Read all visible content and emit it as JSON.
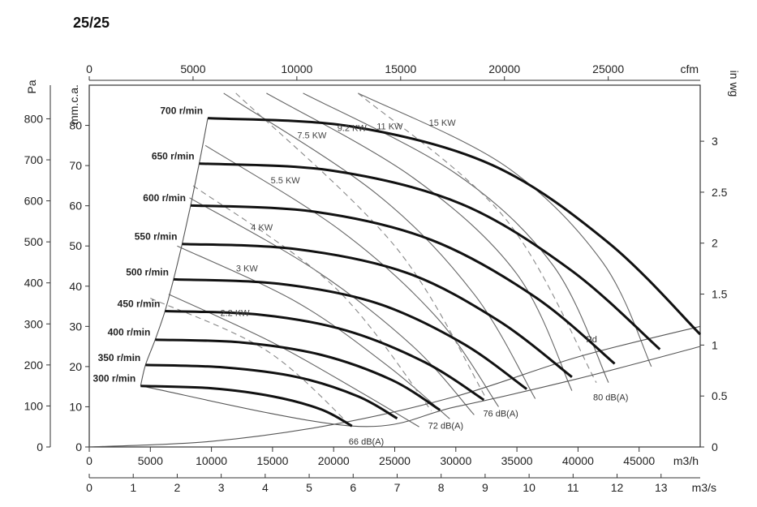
{
  "page_title": "25/25",
  "chart_data": {
    "type": "line",
    "title": "25/25",
    "axes": {
      "bottom_primary": {
        "label": "m3/h",
        "range": [
          0,
          50000
        ],
        "ticks": [
          "0",
          "5000",
          "10000",
          "15000",
          "20000",
          "25000",
          "30000",
          "35000",
          "40000",
          "45000"
        ]
      },
      "bottom_secondary": {
        "label": "m3/s",
        "range": [
          0,
          13.89
        ],
        "ticks": [
          "0",
          "1",
          "2",
          "3",
          "4",
          "5",
          "6",
          "7",
          "8",
          "9",
          "10",
          "11",
          "12",
          "13"
        ]
      },
      "top": {
        "label": "cfm",
        "range": [
          0,
          29430
        ],
        "ticks": [
          "0",
          "5000",
          "10000",
          "15000",
          "20000",
          "25000"
        ]
      },
      "left_outer": {
        "label": "Pa",
        "range": [
          0,
          882
        ],
        "ticks": [
          "0",
          "100",
          "200",
          "300",
          "400",
          "500",
          "600",
          "700",
          "800"
        ]
      },
      "left_inner": {
        "label": "mm.c.a.",
        "range": [
          0,
          90
        ],
        "ticks": [
          "0",
          "10",
          "20",
          "30",
          "40",
          "50",
          "60",
          "70",
          "80"
        ]
      },
      "right": {
        "label": "in wg",
        "range": [
          0,
          3.55
        ],
        "ticks": [
          "0",
          "0.5",
          "1",
          "1.5",
          "2",
          "2.5",
          "3"
        ]
      }
    },
    "rpm_curves": [
      {
        "label": "300 r/min",
        "rpm": 300,
        "points": [
          [
            4200,
            15.2
          ],
          [
            10000,
            14.6
          ],
          [
            15000,
            12.6
          ],
          [
            19000,
            9.3
          ],
          [
            21500,
            5.2
          ]
        ]
      },
      {
        "label": "350 r/min",
        "rpm": 350,
        "points": [
          [
            4600,
            20.4
          ],
          [
            11000,
            19.8
          ],
          [
            17000,
            17.4
          ],
          [
            22000,
            12.6
          ],
          [
            25200,
            7.1
          ]
        ]
      },
      {
        "label": "400 r/min",
        "rpm": 400,
        "points": [
          [
            5400,
            26.7
          ],
          [
            12500,
            26.0
          ],
          [
            19000,
            22.9
          ],
          [
            24800,
            16.6
          ],
          [
            28700,
            9.2
          ]
        ]
      },
      {
        "label": "450 r/min",
        "rpm": 450,
        "points": [
          [
            6200,
            33.8
          ],
          [
            14000,
            32.9
          ],
          [
            21000,
            29.0
          ],
          [
            27500,
            21.0
          ],
          [
            32300,
            11.7
          ]
        ]
      },
      {
        "label": "500 r/min",
        "rpm": 500,
        "points": [
          [
            6900,
            41.7
          ],
          [
            15500,
            40.6
          ],
          [
            23500,
            35.8
          ],
          [
            30500,
            25.9
          ],
          [
            35800,
            14.4
          ]
        ]
      },
      {
        "label": "550 r/min",
        "rpm": 550,
        "points": [
          [
            7600,
            50.5
          ],
          [
            17000,
            49.2
          ],
          [
            26000,
            43.3
          ],
          [
            33500,
            31.4
          ],
          [
            39500,
            17.4
          ]
        ]
      },
      {
        "label": "600 r/min",
        "rpm": 600,
        "points": [
          [
            8300,
            60.1
          ],
          [
            18500,
            58.5
          ],
          [
            28000,
            51.5
          ],
          [
            36500,
            37.3
          ],
          [
            43000,
            20.7
          ]
        ]
      },
      {
        "label": "650 r/min",
        "rpm": 650,
        "points": [
          [
            9000,
            70.5
          ],
          [
            20000,
            68.7
          ],
          [
            30500,
            60.4
          ],
          [
            39500,
            43.8
          ],
          [
            46700,
            24.3
          ]
        ]
      },
      {
        "label": "700 r/min",
        "rpm": 700,
        "points": [
          [
            9700,
            81.8
          ],
          [
            21500,
            79.7
          ],
          [
            33000,
            70.1
          ],
          [
            42500,
            50.8
          ],
          [
            50000,
            28.0
          ]
        ]
      }
    ],
    "power_lines": [
      {
        "label": "2.2 KW",
        "points": [
          [
            6500,
            38
          ],
          [
            15000,
            26
          ],
          [
            22000,
            14
          ],
          [
            27000,
            5
          ]
        ]
      },
      {
        "label": "3 KW",
        "points": [
          [
            7200,
            50
          ],
          [
            17000,
            36
          ],
          [
            24500,
            20
          ],
          [
            29500,
            7
          ]
        ]
      },
      {
        "label": "4 KW",
        "points": [
          [
            8200,
            62
          ],
          [
            18500,
            44
          ],
          [
            26500,
            25
          ],
          [
            31500,
            8
          ]
        ]
      },
      {
        "label": "5.5 KW",
        "points": [
          [
            9500,
            75
          ],
          [
            20500,
            54
          ],
          [
            28500,
            32
          ],
          [
            33500,
            10
          ]
        ]
      },
      {
        "label": "7.5 KW",
        "points": [
          [
            11000,
            88
          ],
          [
            23500,
            63
          ],
          [
            31500,
            38
          ],
          [
            36500,
            12
          ]
        ]
      },
      {
        "label": "9.2 KW",
        "points": [
          [
            14500,
            88
          ],
          [
            26500,
            67
          ],
          [
            35000,
            43
          ],
          [
            39500,
            14
          ]
        ]
      },
      {
        "label": "11 KW",
        "points": [
          [
            17500,
            88
          ],
          [
            30000,
            68
          ],
          [
            38000,
            45
          ],
          [
            42500,
            16
          ]
        ]
      },
      {
        "label": "15 KW",
        "points": [
          [
            22000,
            88
          ],
          [
            34000,
            70
          ],
          [
            42000,
            46
          ],
          [
            46000,
            20
          ]
        ]
      }
    ],
    "db_lines": [
      {
        "label": "66 dB(A)",
        "points": [
          [
            5000,
            37
          ],
          [
            14500,
            24
          ],
          [
            21500,
            5
          ]
        ]
      },
      {
        "label": "72 dB(A)",
        "points": [
          [
            8500,
            65
          ],
          [
            20000,
            40
          ],
          [
            28000,
            9
          ]
        ]
      },
      {
        "label": "76 dB(A)",
        "points": [
          [
            12000,
            88
          ],
          [
            25000,
            50
          ],
          [
            32500,
            12
          ]
        ]
      },
      {
        "label": "80 dB(A)",
        "points": [
          [
            22000,
            88
          ],
          [
            34000,
            57
          ],
          [
            41500,
            16
          ]
        ]
      }
    ],
    "pd_curve": {
      "label": "Pd",
      "points": [
        [
          0,
          0
        ],
        [
          10000,
          1.4
        ],
        [
          20000,
          5.6
        ],
        [
          30000,
          12.6
        ],
        [
          40000,
          22.4
        ],
        [
          50000,
          30.0
        ]
      ]
    },
    "lower_boundary": {
      "points": [
        [
          4200,
          15.2
        ],
        [
          21500,
          5.2
        ],
        [
          30000,
          10.0
        ],
        [
          40000,
          17.0
        ],
        [
          50000,
          25.0
        ]
      ]
    }
  }
}
